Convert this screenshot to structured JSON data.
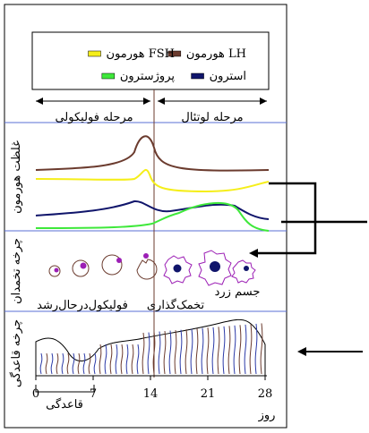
{
  "legend": [
    {
      "label": "هورمون LH",
      "color": "#6b3b2e"
    },
    {
      "label": "هورمون FSH",
      "color": "#f5ee1a"
    },
    {
      "label": "استرون",
      "color": "#10156b"
    },
    {
      "label": "پروژسترون",
      "color": "#3ee83a"
    }
  ],
  "phases": {
    "follicular": "مرحله فولیکولی",
    "luteal": "مرحله لوتئال"
  },
  "panels": {
    "hormone": "غلظت هورمون",
    "ovary": "چرخه تخمدان",
    "uterus": "چرخه قاعدگی"
  },
  "ovary_labels": {
    "corpus_luteum": "جسم زرد",
    "ovulation": "تخمک‌گذاری",
    "growing_follicle": "فولیکول‌درحال‌رشد"
  },
  "axis": {
    "ticks": [
      0,
      7,
      14,
      21,
      28
    ],
    "unit": "روز",
    "menstruation": "قاعدگی"
  }
}
